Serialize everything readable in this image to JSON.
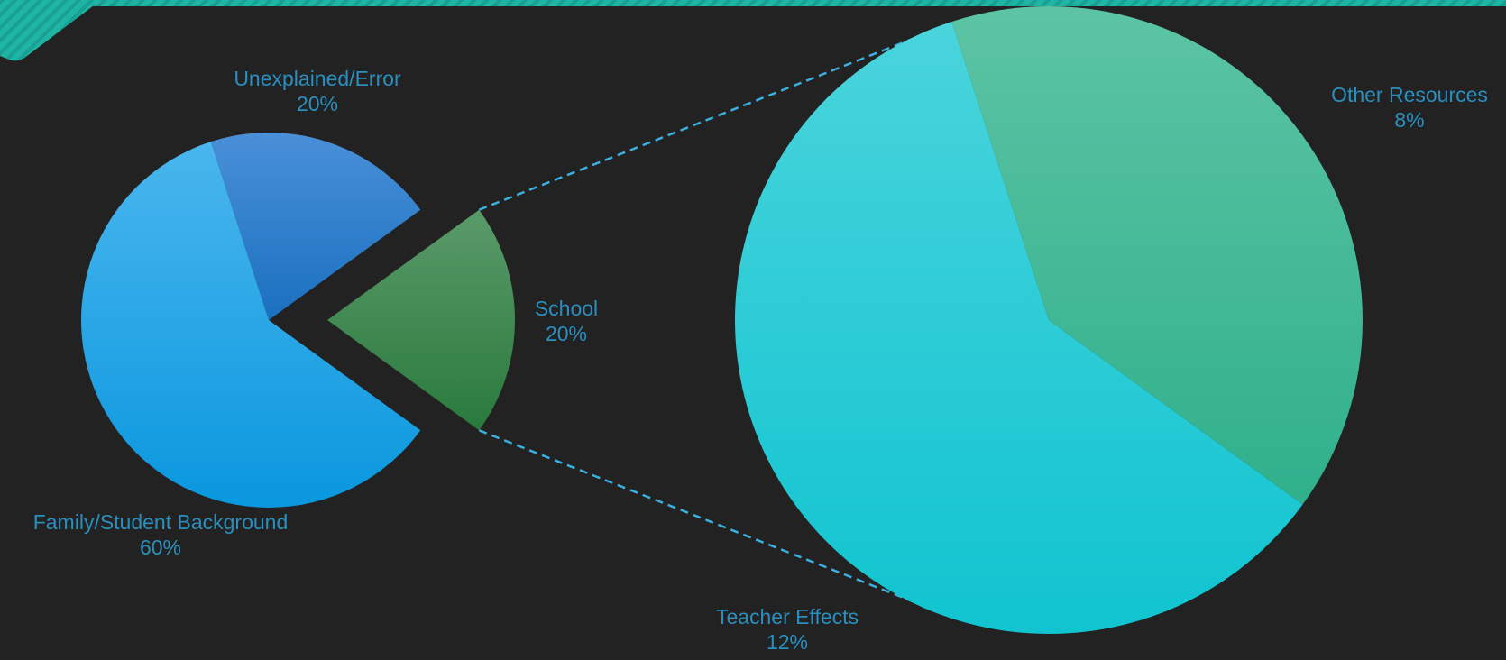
{
  "chart_data": {
    "type": "pie",
    "subtype": "pie-of-pie",
    "primary": {
      "slices": [
        {
          "label": "Family/Student Background",
          "percent_label": "60%",
          "value": 60,
          "color_top": "#4ab6ee",
          "color_bottom": "#0a97de"
        },
        {
          "label": "School",
          "percent_label": "20%",
          "value": 20,
          "color_top": "#5a9a6a",
          "color_bottom": "#2a7a3c",
          "exploded": true
        },
        {
          "label": "Unexplained/Error",
          "percent_label": "20%",
          "value": 20,
          "color_top": "#4a90d8",
          "color_bottom": "#1a70c0"
        }
      ]
    },
    "secondary": {
      "source_slice": "School",
      "slices": [
        {
          "label": "Teacher Effects",
          "percent_label": "12%",
          "value": 12,
          "color_top": "#4ad4dc",
          "color_bottom": "#10c4d0"
        },
        {
          "label": "Other Resources",
          "percent_label": "8%",
          "value": 8,
          "color_top": "#5cc4a4",
          "color_bottom": "#30b08c"
        }
      ]
    },
    "label_color": "#2a8fbf",
    "connector_color": "#3ab0e0",
    "legend": "none"
  },
  "decor": {
    "accent_color": "#1fb5a5",
    "background": "#222222"
  }
}
